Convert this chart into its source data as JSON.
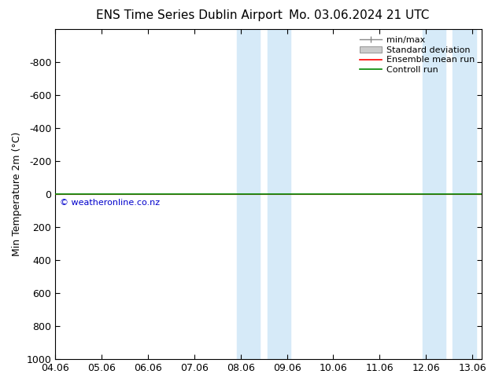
{
  "title_left": "ENS Time Series Dublin Airport",
  "title_right": "Mo. 03.06.2024 21 UTC",
  "ylabel": "Min Temperature 2m (°C)",
  "ylim_top": -1000,
  "ylim_bottom": 1000,
  "yticks": [
    -800,
    -600,
    -400,
    -200,
    0,
    200,
    400,
    600,
    800,
    1000
  ],
  "xtick_labels": [
    "04.06",
    "05.06",
    "06.06",
    "07.06",
    "08.06",
    "09.06",
    "10.06",
    "11.06",
    "12.06",
    "13.06"
  ],
  "xtick_pos": [
    4,
    5,
    6,
    7,
    8,
    9,
    10,
    11,
    12,
    13
  ],
  "xlim": [
    4,
    13.2
  ],
  "bg_color": "#ffffff",
  "plot_bg_color": "#ffffff",
  "shade_bands": [
    {
      "xstart": 7.92,
      "xend": 8.42,
      "color": "#d6eaf8"
    },
    {
      "xstart": 8.58,
      "xend": 9.08,
      "color": "#d6eaf8"
    },
    {
      "xstart": 11.92,
      "xend": 12.42,
      "color": "#d6eaf8"
    },
    {
      "xstart": 12.58,
      "xend": 13.08,
      "color": "#d6eaf8"
    }
  ],
  "control_run_y": 0,
  "control_run_color": "#008800",
  "ensemble_mean_color": "#ff0000",
  "minmax_color": "#888888",
  "stddev_facecolor": "#cccccc",
  "stddev_edgecolor": "#888888",
  "copyright_text": "© weatheronline.co.nz",
  "copyright_color": "#0000cc",
  "legend_labels": [
    "min/max",
    "Standard deviation",
    "Ensemble mean run",
    "Controll run"
  ],
  "legend_colors": [
    "#888888",
    "#cccccc",
    "#ff0000",
    "#008800"
  ],
  "font_size": 9,
  "title_font_size": 11,
  "ylabel_font_size": 9
}
